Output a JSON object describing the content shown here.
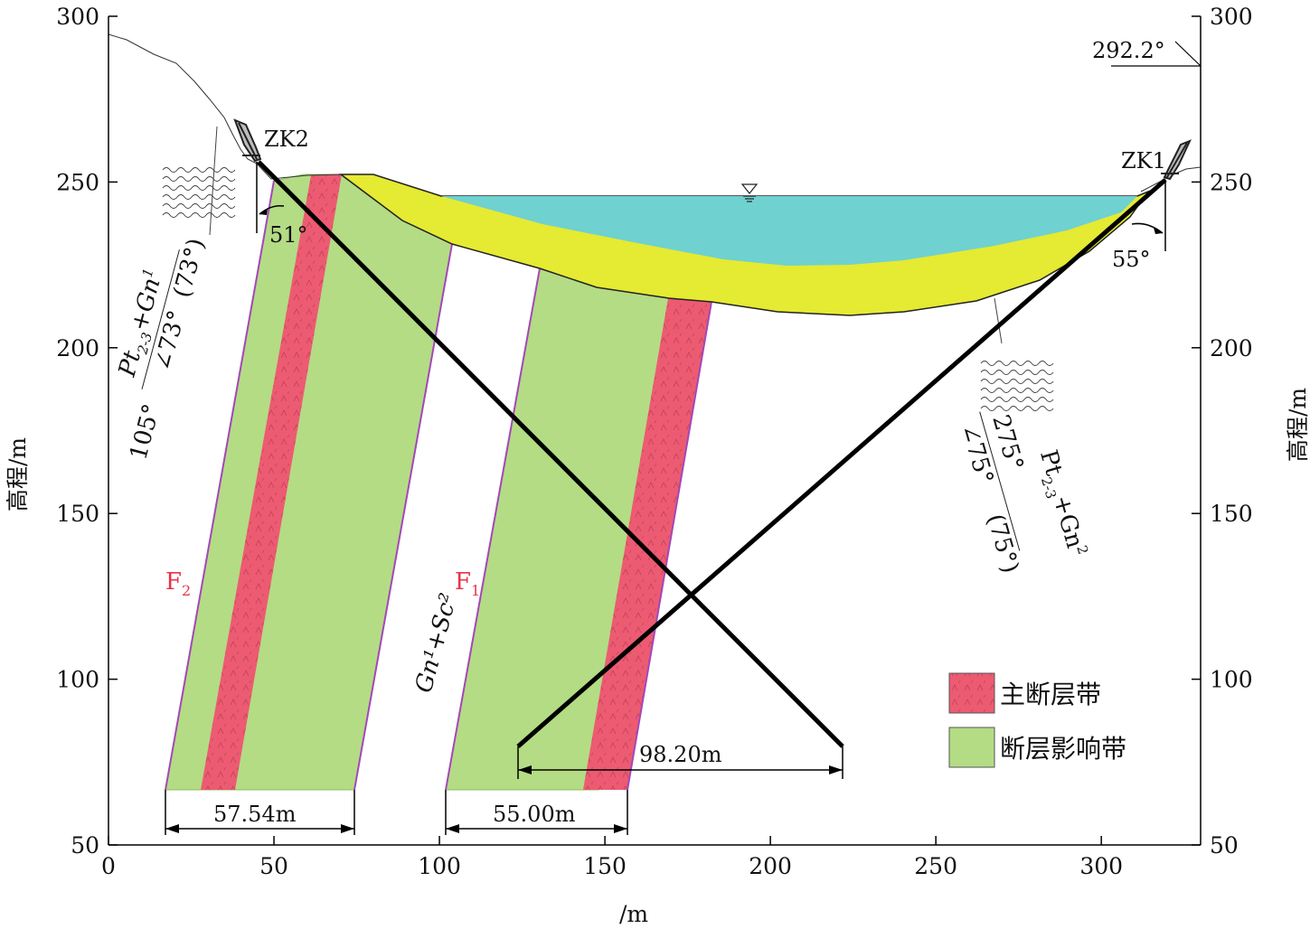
{
  "axes": {
    "x_ticks": [
      "0",
      "50",
      "100",
      "150",
      "200",
      "250",
      "300"
    ],
    "y_ticks": [
      "300",
      "250",
      "200",
      "150",
      "100",
      "50"
    ],
    "x_label": "/m",
    "y_label_left": "高程/m",
    "y_label_right": "高程/m",
    "xlim": [
      0,
      330
    ],
    "ylim": [
      50,
      300
    ]
  },
  "colors": {
    "main_fault": "#ec5b72",
    "influence_zone": "#b4dc84",
    "water": "#6fd1d0",
    "overburden": "#e5ea32",
    "fault_edge": "#a347b8",
    "label_red": "#e8334a"
  },
  "boreholes": [
    {
      "name": "ZK2",
      "angle": "51°"
    },
    {
      "name": "ZK1",
      "angle": "55°"
    }
  ],
  "elevation_mark": "292.2°",
  "faults": [
    {
      "name": "F",
      "sub": "2"
    },
    {
      "name": "F",
      "sub": "1"
    }
  ],
  "rock_units": {
    "left_formula_main": "Pt",
    "left_formula_sub": "2-3",
    "left_formula_plus": "+Gn",
    "left_formula_sup": "1",
    "left_attitude": "105°",
    "left_dip": "∠73°",
    "left_dip_alt": "(73°)",
    "center": "Gn¹+Sc²",
    "right_attitude": "275°",
    "right_formula_main": "Pt",
    "right_formula_sub": "2-3",
    "right_formula_plus": "+Gn",
    "right_formula_sup": "2",
    "right_dip": "∠75°",
    "right_dip_alt": "(75°)"
  },
  "dimensions": [
    "57.54m",
    "55.00m",
    "98.20m"
  ],
  "legend": [
    {
      "label": "主断层带",
      "kind": "main_fault"
    },
    {
      "label": "断层影响带",
      "kind": "influence_zone"
    }
  ]
}
